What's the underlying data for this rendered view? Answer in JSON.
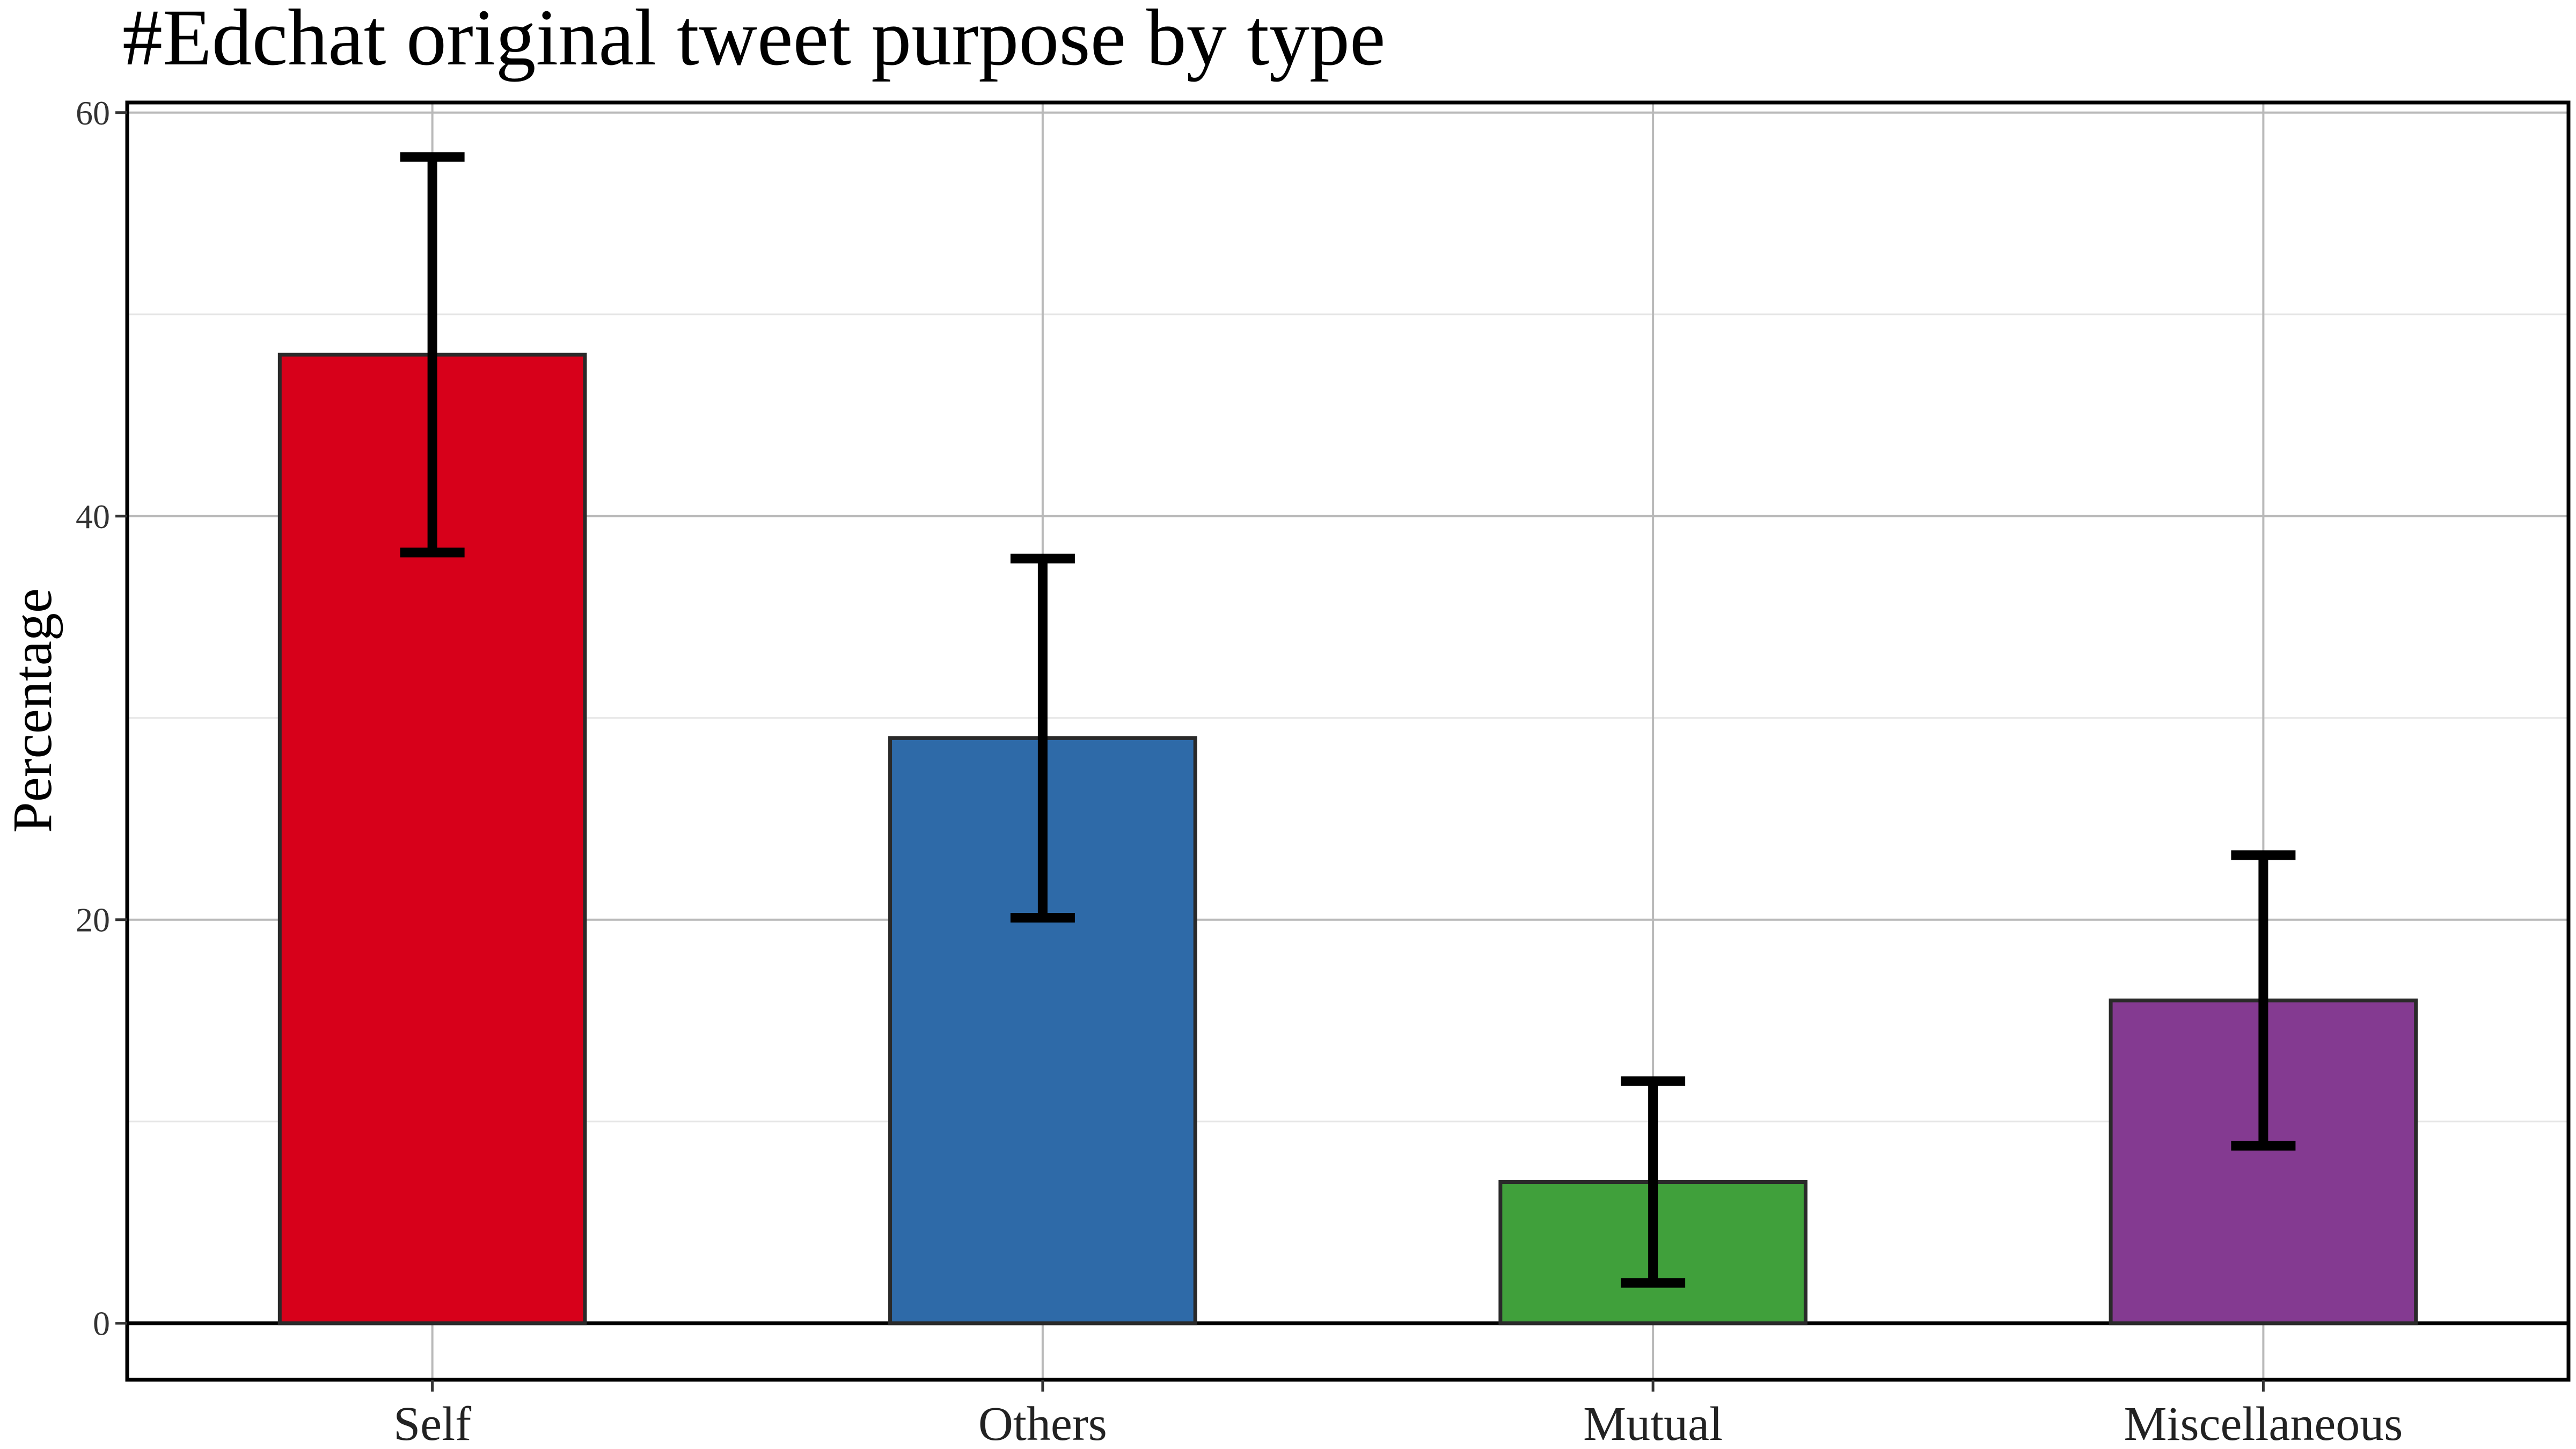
{
  "chart_data": {
    "type": "bar",
    "title": "#Edchat original tweet purpose by type",
    "xlabel": "",
    "ylabel": "Percentage",
    "categories": [
      "Self",
      "Others",
      "Mutual",
      "Miscellaneous"
    ],
    "values": [
      48,
      29,
      7,
      16
    ],
    "error_low": [
      38.2,
      20.1,
      2.0,
      8.8
    ],
    "error_high": [
      57.8,
      37.9,
      12.0,
      23.2
    ],
    "colors": [
      "#d7001a",
      "#2e6aa8",
      "#40a03b",
      "#843a91"
    ],
    "ylim": [
      -2.8,
      60.5
    ],
    "yticks": [
      0,
      20,
      40,
      60
    ],
    "grid": true,
    "legend": "none"
  }
}
